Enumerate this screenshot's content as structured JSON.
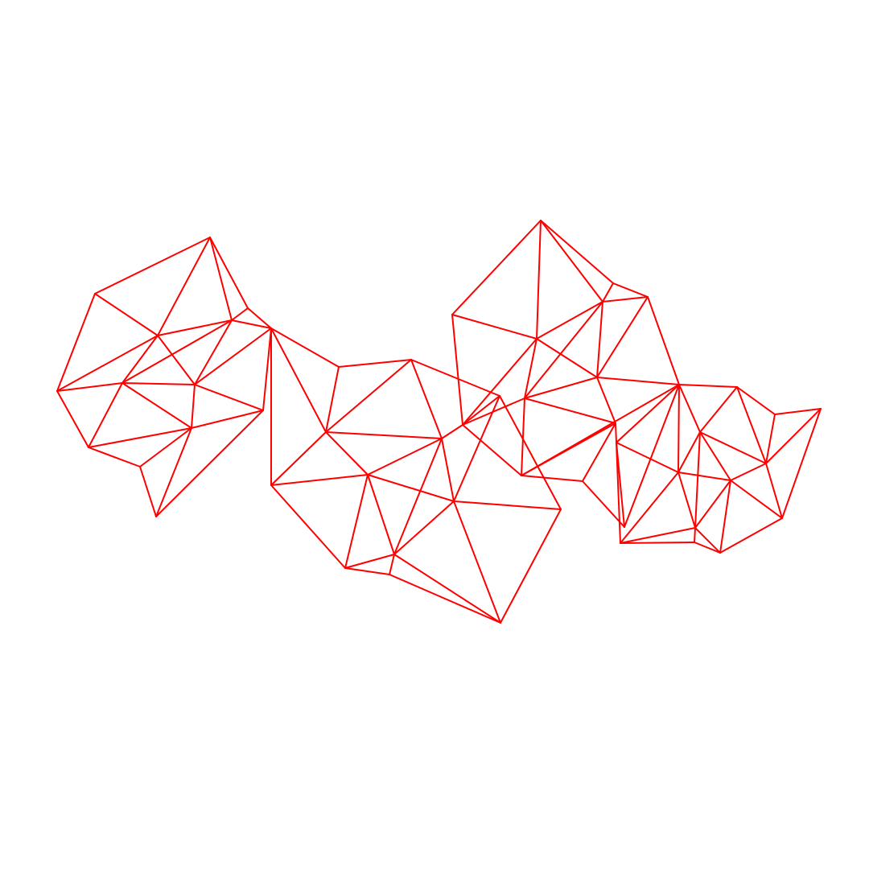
{
  "diagram": {
    "type": "triangulated-mesh",
    "stroke_color": "#ff0000",
    "background_color": "#ffffff",
    "labels": []
  }
}
